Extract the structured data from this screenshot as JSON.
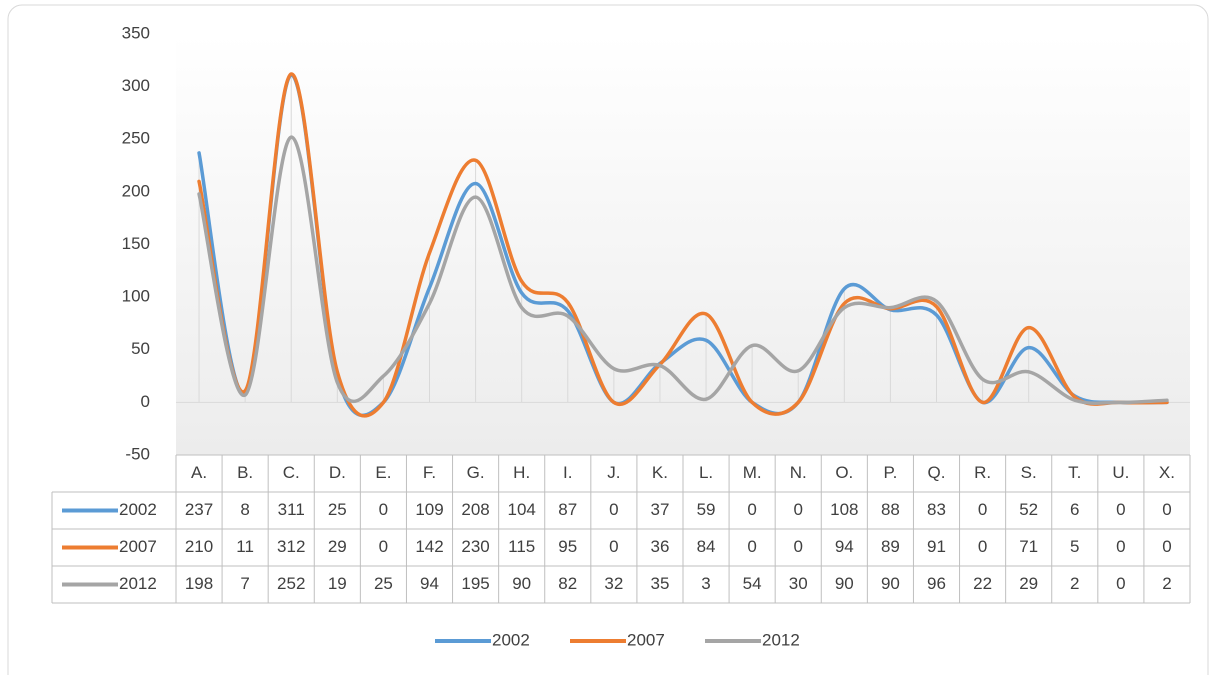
{
  "chart_data": {
    "type": "line",
    "smooth": true,
    "categories": [
      "A.",
      "B.",
      "C.",
      "D.",
      "E.",
      "F.",
      "G.",
      "H.",
      "I.",
      "J.",
      "K.",
      "L.",
      "M.",
      "N.",
      "O.",
      "P.",
      "Q.",
      "R.",
      "S.",
      "T.",
      "U.",
      "X."
    ],
    "series": [
      {
        "name": "2002",
        "color": "#5b9bd5",
        "values": [
          237,
          8,
          311,
          25,
          0,
          109,
          208,
          104,
          87,
          0,
          37,
          59,
          0,
          0,
          108,
          88,
          83,
          0,
          52,
          6,
          0,
          0
        ]
      },
      {
        "name": "2007",
        "color": "#ed7d31",
        "values": [
          210,
          11,
          312,
          29,
          0,
          142,
          230,
          115,
          95,
          0,
          36,
          84,
          0,
          0,
          94,
          89,
          91,
          0,
          71,
          5,
          0,
          0
        ]
      },
      {
        "name": "2012",
        "color": "#a5a5a5",
        "values": [
          198,
          7,
          252,
          19,
          25,
          94,
          195,
          90,
          82,
          32,
          35,
          3,
          54,
          30,
          90,
          90,
          96,
          22,
          29,
          2,
          0,
          2
        ]
      }
    ],
    "ylim": [
      -50,
      350
    ],
    "yticks": [
      -50,
      0,
      50,
      100,
      150,
      200,
      250,
      300,
      350
    ],
    "grid": false,
    "data_table": true,
    "legend": "bottom"
  }
}
